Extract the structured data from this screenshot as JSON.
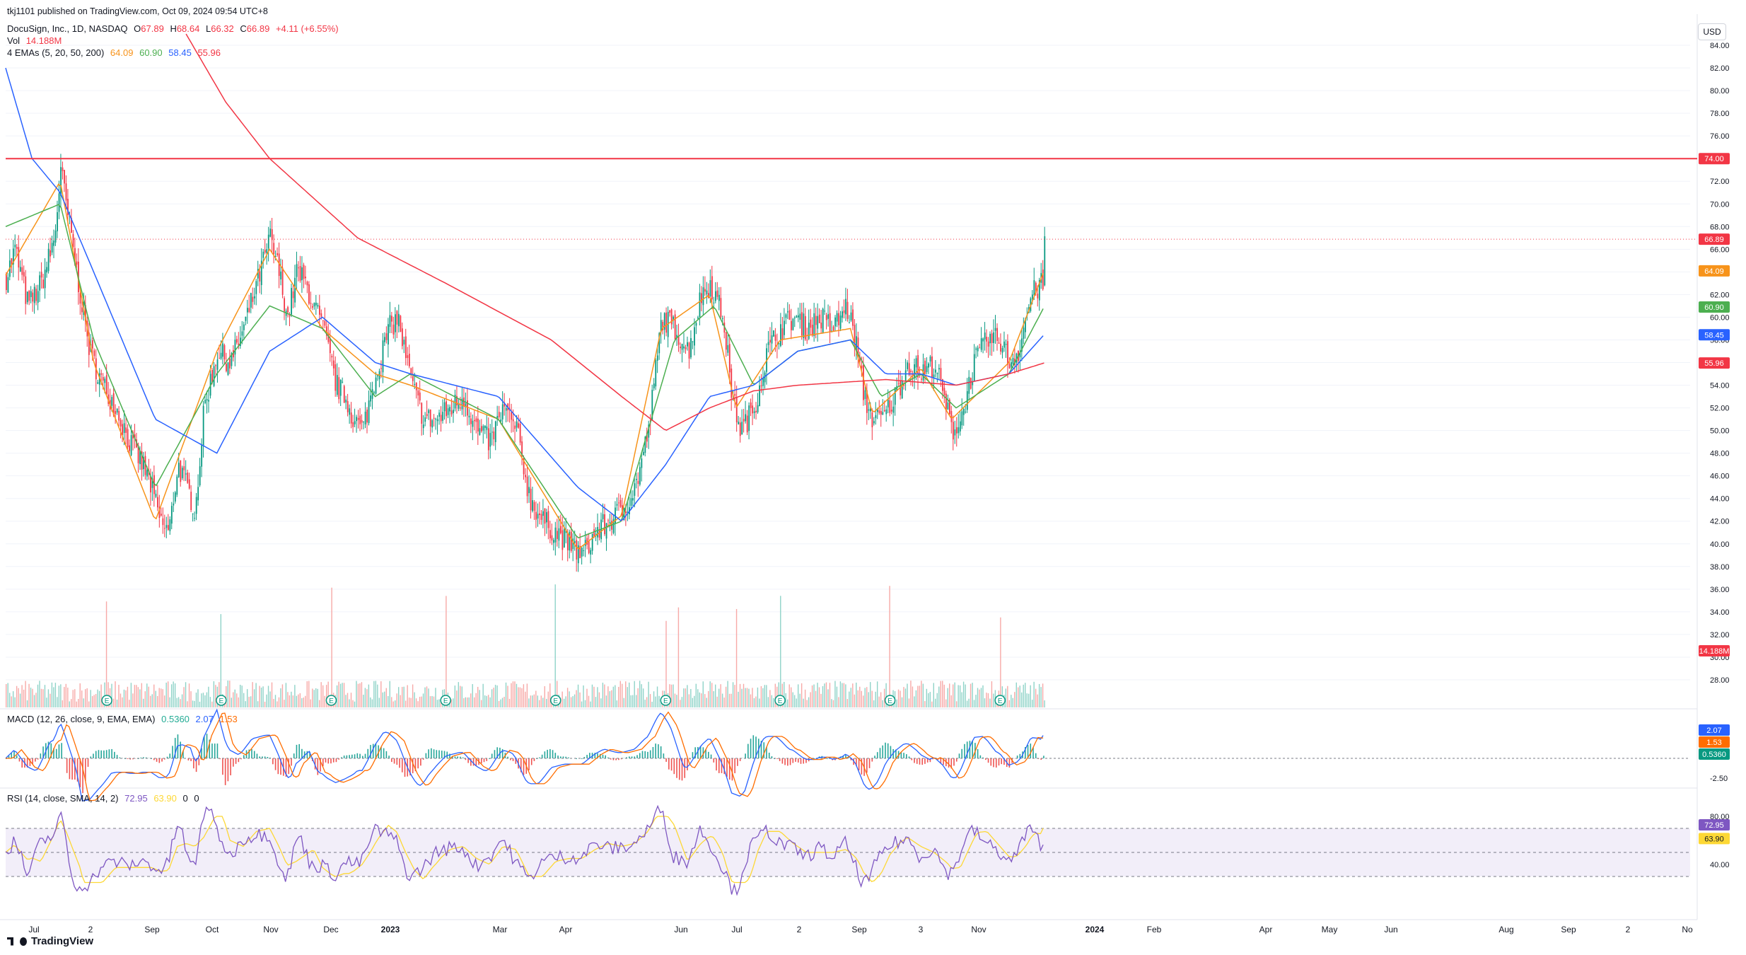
{
  "publisher": "tkj1101 published on TradingView.com, Oct 09, 2024 09:54 UTC+8",
  "symbol": {
    "name": "DocuSign, Inc., 1D, NASDAQ",
    "o_label": "O",
    "o": "67.89",
    "h_label": "H",
    "h": "68.64",
    "l_label": "L",
    "l": "66.32",
    "c_label": "C",
    "c": "66.89",
    "change": "+4.11 (+6.55%)"
  },
  "volume": {
    "label": "Vol",
    "value": "14.188M"
  },
  "emas": {
    "label": "4 EMAs (5, 20, 50, 200)",
    "v5": "64.09",
    "v20": "60.90",
    "v50": "58.45",
    "v200": "55.96"
  },
  "macd": {
    "label": "MACD (12, 26, close, 9, EMA, EMA)",
    "hist": "0.5360",
    "macd": "2.07",
    "signal": "1.53"
  },
  "rsi": {
    "label": "RSI (14, close, SMA, 14, 2)",
    "rsi": "72.95",
    "ma": "63.90",
    "z1": "0",
    "z2": "0"
  },
  "currency": "USD",
  "brand": "TradingView",
  "colors": {
    "up": "#089981",
    "down": "#f23645",
    "ema5": "#f7931a",
    "ema20": "#4caf50",
    "ema50": "#2962ff",
    "ema200": "#f23645",
    "rsi": "#7e57c2",
    "rsi_ma": "#fdd835",
    "hline": "#f23645"
  },
  "chart_data": [
    {
      "type": "candlestick",
      "title": "DocuSign, Inc., 1D, NASDAQ",
      "ylim": [
        26.5,
        85.5
      ],
      "y_ticks": [
        "28.00",
        "30.00",
        "32.00",
        "34.00",
        "36.00",
        "38.00",
        "40.00",
        "42.00",
        "44.00",
        "46.00",
        "48.00",
        "50.00",
        "52.00",
        "54.00",
        "56.00",
        "58.00",
        "60.00",
        "62.00",
        "64.00",
        "66.00",
        "68.00",
        "70.00",
        "72.00",
        "74.00",
        "76.00",
        "78.00",
        "80.00",
        "82.00",
        "84.00"
      ],
      "x_ticks": [
        "Jul",
        "2",
        "Sep",
        "Oct",
        "Nov",
        "Dec",
        "2023",
        "Mar",
        "Apr",
        "Jun",
        "Jul",
        "2",
        "Sep",
        "3",
        "Nov",
        "2024",
        "Feb",
        "Apr",
        "May",
        "Jun",
        "Aug",
        "Sep",
        "2",
        "No"
      ],
      "price_key_points": [
        [
          0,
          63.5
        ],
        [
          10,
          66
        ],
        [
          25,
          61
        ],
        [
          40,
          63
        ],
        [
          55,
          67
        ],
        [
          62,
          73
        ],
        [
          68,
          70
        ],
        [
          80,
          64
        ],
        [
          95,
          57
        ],
        [
          110,
          54
        ],
        [
          125,
          52
        ],
        [
          140,
          49
        ],
        [
          155,
          47
        ],
        [
          165,
          45
        ],
        [
          175,
          42
        ],
        [
          185,
          41
        ],
        [
          195,
          47
        ],
        [
          205,
          45
        ],
        [
          215,
          43
        ],
        [
          225,
          52
        ],
        [
          240,
          57
        ],
        [
          255,
          56
        ],
        [
          270,
          59
        ],
        [
          285,
          63
        ],
        [
          300,
          67
        ],
        [
          310,
          64
        ],
        [
          320,
          60
        ],
        [
          330,
          64
        ],
        [
          340,
          63
        ],
        [
          350,
          61
        ],
        [
          360,
          59
        ],
        [
          375,
          54
        ],
        [
          385,
          53
        ],
        [
          395,
          51
        ],
        [
          405,
          50
        ],
        [
          420,
          55
        ],
        [
          435,
          59
        ],
        [
          445,
          60
        ],
        [
          455,
          56
        ],
        [
          465,
          53
        ],
        [
          475,
          51
        ],
        [
          490,
          51
        ],
        [
          505,
          52
        ],
        [
          520,
          53
        ],
        [
          535,
          50
        ],
        [
          550,
          49
        ],
        [
          565,
          52
        ],
        [
          580,
          50
        ],
        [
          595,
          44
        ],
        [
          610,
          42
        ],
        [
          625,
          41
        ],
        [
          640,
          40
        ],
        [
          655,
          39
        ],
        [
          670,
          41
        ],
        [
          685,
          42
        ],
        [
          700,
          43
        ],
        [
          715,
          45
        ],
        [
          730,
          50
        ],
        [
          745,
          60
        ],
        [
          760,
          59
        ],
        [
          775,
          57
        ],
        [
          790,
          62
        ],
        [
          800,
          63
        ],
        [
          815,
          60
        ],
        [
          825,
          53
        ],
        [
          835,
          50
        ],
        [
          850,
          52
        ],
        [
          865,
          57
        ],
        [
          880,
          59
        ],
        [
          895,
          60
        ],
        [
          910,
          59
        ],
        [
          925,
          60
        ],
        [
          940,
          59
        ],
        [
          955,
          61
        ],
        [
          965,
          58
        ],
        [
          975,
          53
        ],
        [
          985,
          51
        ],
        [
          995,
          51
        ],
        [
          1010,
          53
        ],
        [
          1025,
          56
        ],
        [
          1040,
          55
        ],
        [
          1055,
          56
        ],
        [
          1065,
          53
        ],
        [
          1075,
          50
        ],
        [
          1085,
          51
        ],
        [
          1100,
          56
        ],
        [
          1115,
          58
        ],
        [
          1130,
          58
        ],
        [
          1140,
          56
        ],
        [
          1150,
          57
        ],
        [
          1165,
          62
        ],
        [
          1178,
          63
        ],
        [
          1180,
          66.89
        ]
      ],
      "ema_key_points": {
        "ema5": [
          [
            0,
            63.7
          ],
          [
            62,
            72
          ],
          [
            100,
            56
          ],
          [
            170,
            42
          ],
          [
            240,
            57
          ],
          [
            300,
            66
          ],
          [
            360,
            59
          ],
          [
            420,
            55
          ],
          [
            460,
            54
          ],
          [
            560,
            51
          ],
          [
            650,
            39.5
          ],
          [
            700,
            42.5
          ],
          [
            745,
            59
          ],
          [
            800,
            62
          ],
          [
            830,
            52
          ],
          [
            880,
            58
          ],
          [
            960,
            59
          ],
          [
            985,
            51.5
          ],
          [
            1040,
            55.5
          ],
          [
            1075,
            51
          ],
          [
            1140,
            56
          ],
          [
            1180,
            64.09
          ]
        ],
        "ema20": [
          [
            0,
            68
          ],
          [
            62,
            70
          ],
          [
            100,
            58
          ],
          [
            170,
            45
          ],
          [
            240,
            55
          ],
          [
            300,
            61
          ],
          [
            360,
            59
          ],
          [
            420,
            53
          ],
          [
            460,
            55
          ],
          [
            560,
            51
          ],
          [
            650,
            40.5
          ],
          [
            700,
            42
          ],
          [
            760,
            58
          ],
          [
            805,
            61
          ],
          [
            850,
            54
          ],
          [
            900,
            57
          ],
          [
            960,
            58
          ],
          [
            995,
            53
          ],
          [
            1040,
            55
          ],
          [
            1080,
            52
          ],
          [
            1140,
            55
          ],
          [
            1180,
            60.9
          ]
        ],
        "ema50": [
          [
            0,
            82
          ],
          [
            30,
            74
          ],
          [
            62,
            71
          ],
          [
            100,
            64
          ],
          [
            170,
            51
          ],
          [
            240,
            48
          ],
          [
            300,
            57
          ],
          [
            360,
            60
          ],
          [
            420,
            56
          ],
          [
            460,
            55
          ],
          [
            560,
            53
          ],
          [
            650,
            45
          ],
          [
            700,
            42
          ],
          [
            750,
            47
          ],
          [
            800,
            53
          ],
          [
            850,
            54
          ],
          [
            900,
            57
          ],
          [
            960,
            58
          ],
          [
            1000,
            55
          ],
          [
            1040,
            55
          ],
          [
            1080,
            54
          ],
          [
            1140,
            55
          ],
          [
            1180,
            58.45
          ]
        ],
        "ema200": [
          [
            205,
            85
          ],
          [
            250,
            79
          ],
          [
            300,
            74
          ],
          [
            400,
            67
          ],
          [
            500,
            63
          ],
          [
            620,
            58
          ],
          [
            700,
            53
          ],
          [
            750,
            50
          ],
          [
            800,
            52
          ],
          [
            850,
            53.5
          ],
          [
            900,
            54
          ],
          [
            1000,
            54.5
          ],
          [
            1080,
            54
          ],
          [
            1140,
            55
          ],
          [
            1180,
            55.96
          ]
        ]
      },
      "horizontal_line": 74,
      "price_labels": [
        "74.00",
        "66.89",
        "64.09",
        "60.90",
        "58.45",
        "55.96",
        "14.188M"
      ]
    },
    {
      "type": "bar",
      "title": "Vol",
      "last_value": "14.188M",
      "spike_indices": [
        115,
        245,
        370,
        500,
        625,
        750,
        765,
        830,
        880,
        1005,
        1130
      ],
      "earnings_markers": "E",
      "earnings_indices": [
        115,
        245,
        370,
        500,
        625,
        750,
        880,
        1005,
        1130
      ]
    },
    {
      "type": "line",
      "title": "MACD (12, 26, close, 9, EMA, EMA)",
      "y_ticks": [
        "-2.50"
      ],
      "values_last": {
        "macd": "2.07",
        "signal": "1.53",
        "hist": "0.5360"
      }
    },
    {
      "type": "line",
      "title": "RSI (14, close, SMA, 14, 2)",
      "y_ticks": [
        "80.00",
        "40.00"
      ],
      "bands": [
        70,
        30
      ],
      "midline": 50,
      "values_last": {
        "rsi": "72.95",
        "ma": "63.90"
      }
    }
  ]
}
